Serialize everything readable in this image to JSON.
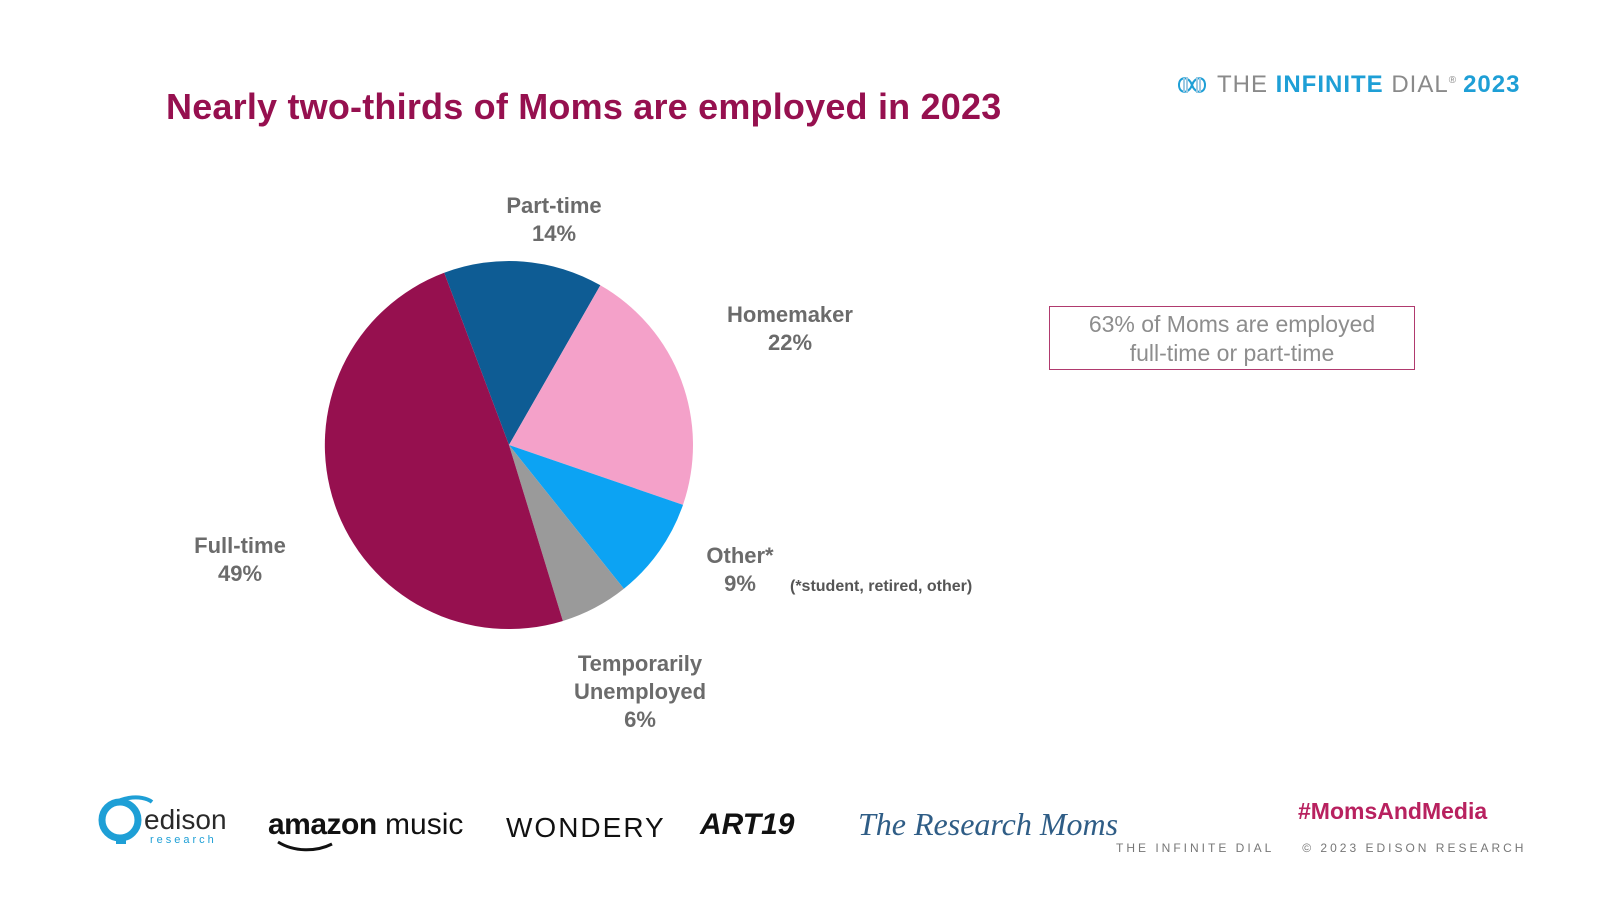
{
  "title": "Nearly two-thirds of Moms are employed in 2023",
  "brand": {
    "prefix": "THE ",
    "highlight": "INFINITE",
    "suffix": " DIAL",
    "mark": "®",
    "year": "2023",
    "accent": "#1e9fd6"
  },
  "chart_data": {
    "type": "pie",
    "title": "Nearly two-thirds of Moms are employed in 2023",
    "slices": [
      {
        "name": "Part-time",
        "lines": [
          "Part-time",
          "14%"
        ],
        "value": 14,
        "color": "#0e5c94"
      },
      {
        "name": "Homemaker",
        "lines": [
          "Homemaker",
          "22%"
        ],
        "value": 22,
        "color": "#f4a1c9"
      },
      {
        "name": "Other*",
        "lines": [
          "Other*",
          "9%"
        ],
        "value": 9,
        "color": "#0ca3f3"
      },
      {
        "name": "Temporarily Unemployed",
        "lines": [
          "Temporarily",
          "Unemployed",
          "6%"
        ],
        "value": 6,
        "color": "#9a9a9a"
      },
      {
        "name": "Full-time",
        "lines": [
          "Full-time",
          "49%"
        ],
        "value": 49,
        "color": "#96104f"
      }
    ],
    "note": "(*student, retired, other)"
  },
  "callout": {
    "line1": "63% of Moms are employed",
    "line2": "full-time or part-time",
    "border": "#b03a6e"
  },
  "footer": {
    "logos": {
      "edison_name": "edison",
      "edison_sub": "research",
      "amazon_a": "amazon",
      "amazon_b": " music",
      "wondery": "WONDERY",
      "art19": "ART19",
      "research_moms": "The Research Moms"
    },
    "hashtag": "#MomsAndMedia",
    "left_text": "THE INFINITE DIAL",
    "right_text": "© 2023 EDISON RESEARCH"
  }
}
